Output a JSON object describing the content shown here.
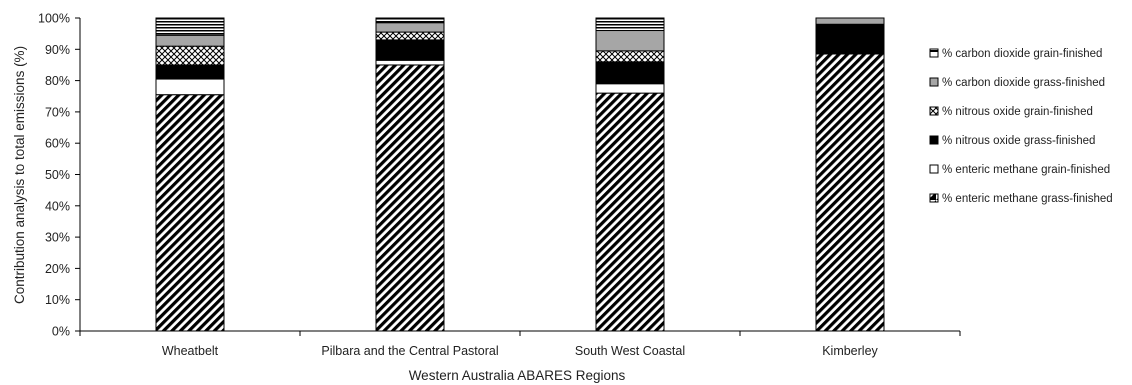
{
  "chart_data": {
    "type": "bar",
    "stacked": true,
    "title": "",
    "xlabel": "Western Australia ABARES Regions",
    "ylabel": "Contribution analysis to total emissions (%)",
    "ylim": [
      0,
      100
    ],
    "yticks": [
      "0%",
      "10%",
      "20%",
      "30%",
      "40%",
      "50%",
      "60%",
      "70%",
      "80%",
      "90%",
      "100%"
    ],
    "categories": [
      "Wheatbelt",
      "Pilbara and the Central Pastoral",
      "South West Coastal",
      "Kimberley"
    ],
    "legend_position": "right",
    "grid": false,
    "series": [
      {
        "name": "% enteric methane grass-finished",
        "pattern": "diagonal-hatch",
        "values": [
          75.5,
          85.0,
          76.0,
          88.5
        ]
      },
      {
        "name": "% enteric methane grain-finished",
        "pattern": "white",
        "values": [
          5.0,
          1.5,
          3.0,
          0.0
        ]
      },
      {
        "name": "% nitrous oxide grass-finished",
        "pattern": "black",
        "values": [
          4.5,
          6.5,
          7.0,
          9.5
        ]
      },
      {
        "name": "% nitrous oxide grain-finished",
        "pattern": "crosshatch",
        "values": [
          6.0,
          2.5,
          3.5,
          0.0
        ]
      },
      {
        "name": "% carbon dioxide grass-finished",
        "pattern": "gray",
        "values": [
          3.5,
          3.0,
          6.5,
          2.0
        ]
      },
      {
        "name": "% carbon dioxide grain-finished",
        "pattern": "horizontal-stripes",
        "values": [
          5.5,
          1.5,
          4.0,
          0.0
        ]
      }
    ],
    "legend_order": [
      5,
      4,
      3,
      2,
      1,
      0
    ]
  }
}
